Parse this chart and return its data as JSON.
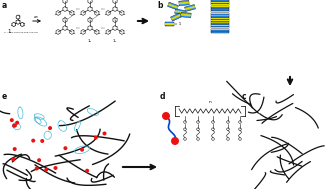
{
  "bg_color": "#ffffff",
  "dark_color": "#111111",
  "blue_color": "#3399ff",
  "blue_dark": "#0044cc",
  "yellow_color": "#dddd00",
  "cyan_color": "#44bbdd",
  "red_color": "#ee1111",
  "gray_color": "#888888",
  "panel_a_label": "a",
  "panel_b_label": "b",
  "panel_c_label": "c",
  "panel_d_label": "d",
  "panel_e_label": "e",
  "mol_label": "1",
  "x_label": "X = Gly-Leu-Lys-Phe-Lys-OH",
  "sub_labels_top": [
    "1₃",
    "1₄",
    "1₅"
  ],
  "sub_labels_bot": [
    "1₆",
    "1₇"
  ],
  "eq1_label": "= 1"
}
